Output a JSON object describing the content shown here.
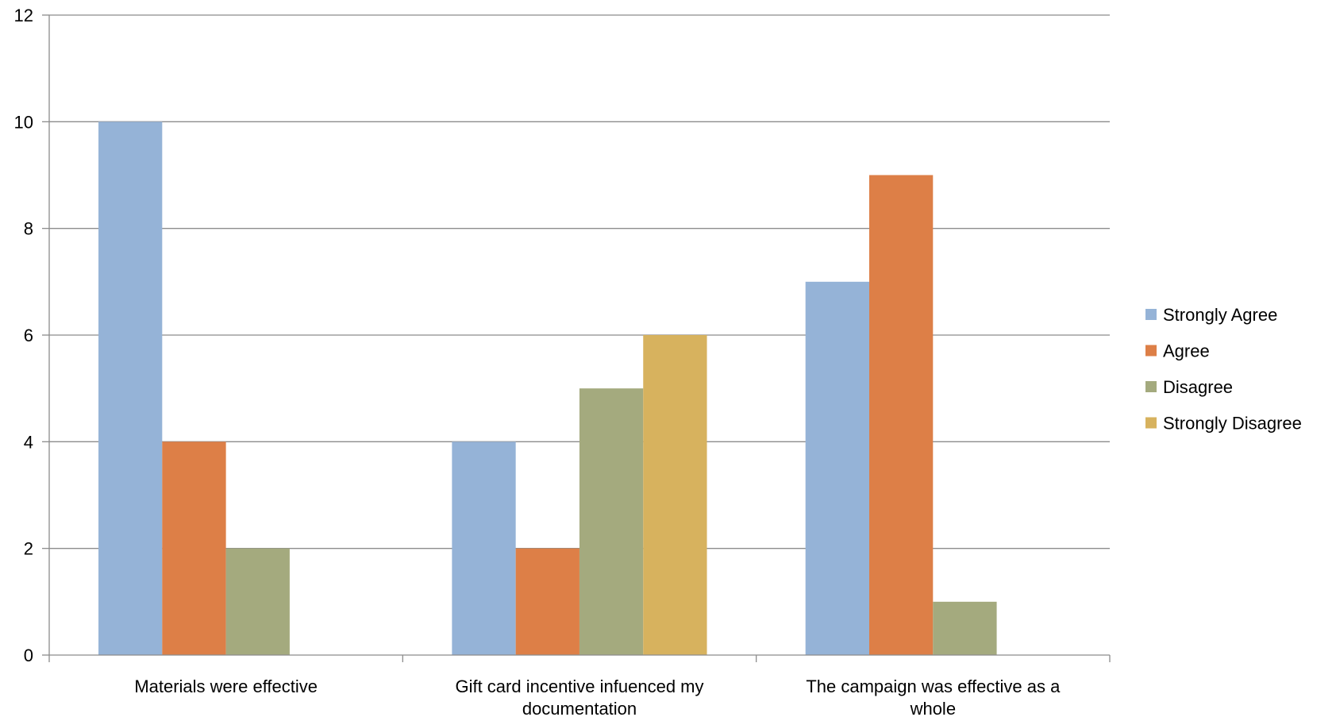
{
  "chart_data": {
    "type": "bar",
    "categories": [
      [
        "Materials were effective"
      ],
      [
        "Gift card incentive infuenced my",
        "documentation"
      ],
      [
        "The campaign was effective as a",
        "whole"
      ]
    ],
    "series": [
      {
        "name": "Strongly Agree",
        "color": "#95b3d7",
        "values": [
          10,
          4,
          7
        ]
      },
      {
        "name": "Agree",
        "color": "#dd7f47",
        "values": [
          4,
          2,
          9
        ]
      },
      {
        "name": "Disagree",
        "color": "#a4aa7e",
        "values": [
          2,
          5,
          1
        ]
      },
      {
        "name": "Strongly Disagree",
        "color": "#d7b25e",
        "values": [
          0,
          6,
          0
        ]
      }
    ],
    "ylim": [
      0,
      12
    ],
    "yticks": [
      0,
      2,
      4,
      6,
      8,
      10,
      12
    ],
    "grid": true,
    "legend_position": "right",
    "gridline_color": "#8c8c8c",
    "axis_color": "#8c8c8c"
  }
}
